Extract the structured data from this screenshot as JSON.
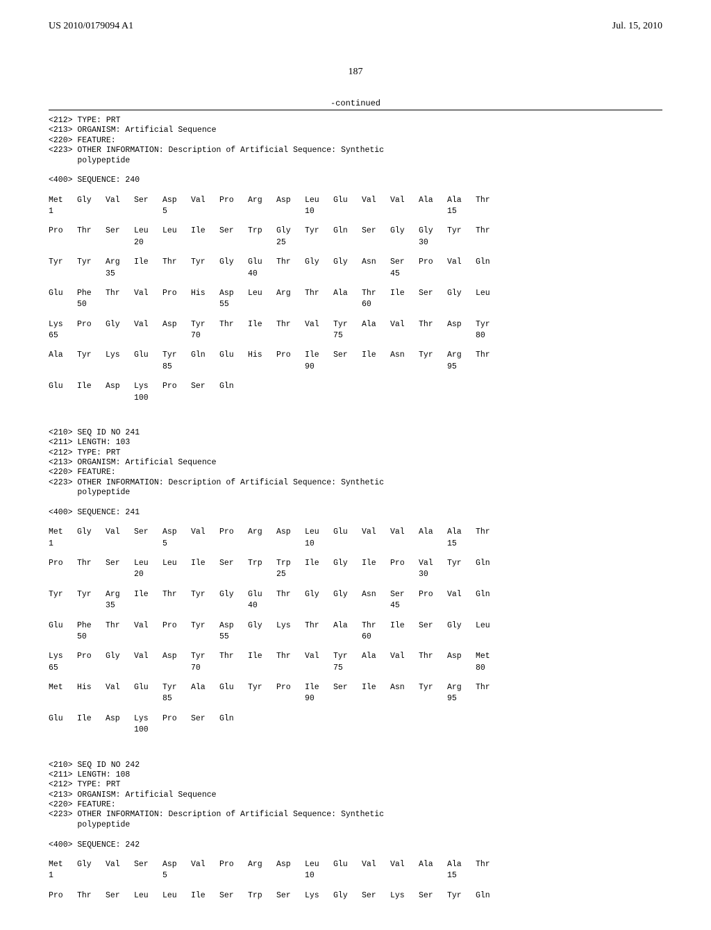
{
  "header": {
    "pub_number": "US 2010/0179094 A1",
    "pub_date": "Jul. 15, 2010"
  },
  "page_number": "187",
  "continued_label": "-continued",
  "meta_240": {
    "l1": "<212> TYPE: PRT",
    "l2": "<213> ORGANISM: Artificial Sequence",
    "l3": "<220> FEATURE:",
    "l4": "<223> OTHER INFORMATION: Description of Artificial Sequence: Synthetic",
    "l5": "      polypeptide",
    "l6": "<400> SEQUENCE: 240"
  },
  "seq_240": {
    "r1": [
      "Met",
      "Gly",
      "Val",
      "Ser",
      "Asp",
      "Val",
      "Pro",
      "Arg",
      "Asp",
      "Leu",
      "Glu",
      "Val",
      "Val",
      "Ala",
      "Ala",
      "Thr"
    ],
    "n1": [
      "1",
      "",
      "",
      "",
      "5",
      "",
      "",
      "",
      "",
      "10",
      "",
      "",
      "",
      "",
      "15",
      ""
    ],
    "r2": [
      "Pro",
      "Thr",
      "Ser",
      "Leu",
      "Leu",
      "Ile",
      "Ser",
      "Trp",
      "Gly",
      "Tyr",
      "Gln",
      "Ser",
      "Gly",
      "Gly",
      "Tyr",
      "Thr"
    ],
    "n2": [
      "",
      "",
      "",
      "20",
      "",
      "",
      "",
      "",
      "25",
      "",
      "",
      "",
      "",
      "30",
      "",
      ""
    ],
    "r3": [
      "Tyr",
      "Tyr",
      "Arg",
      "Ile",
      "Thr",
      "Tyr",
      "Gly",
      "Glu",
      "Thr",
      "Gly",
      "Gly",
      "Asn",
      "Ser",
      "Pro",
      "Val",
      "Gln"
    ],
    "n3": [
      "",
      "",
      "35",
      "",
      "",
      "",
      "",
      "40",
      "",
      "",
      "",
      "",
      "45",
      "",
      "",
      ""
    ],
    "r4": [
      "Glu",
      "Phe",
      "Thr",
      "Val",
      "Pro",
      "His",
      "Asp",
      "Leu",
      "Arg",
      "Thr",
      "Ala",
      "Thr",
      "Ile",
      "Ser",
      "Gly",
      "Leu"
    ],
    "n4": [
      "",
      "50",
      "",
      "",
      "",
      "",
      "55",
      "",
      "",
      "",
      "",
      "60",
      "",
      "",
      "",
      ""
    ],
    "r5": [
      "Lys",
      "Pro",
      "Gly",
      "Val",
      "Asp",
      "Tyr",
      "Thr",
      "Ile",
      "Thr",
      "Val",
      "Tyr",
      "Ala",
      "Val",
      "Thr",
      "Asp",
      "Tyr"
    ],
    "n5": [
      "65",
      "",
      "",
      "",
      "",
      "70",
      "",
      "",
      "",
      "",
      "75",
      "",
      "",
      "",
      "",
      "80"
    ],
    "r6": [
      "Ala",
      "Tyr",
      "Lys",
      "Glu",
      "Tyr",
      "Gln",
      "Glu",
      "His",
      "Pro",
      "Ile",
      "Ser",
      "Ile",
      "Asn",
      "Tyr",
      "Arg",
      "Thr"
    ],
    "n6": [
      "",
      "",
      "",
      "",
      "85",
      "",
      "",
      "",
      "",
      "90",
      "",
      "",
      "",
      "",
      "95",
      ""
    ],
    "r7": [
      "Glu",
      "Ile",
      "Asp",
      "Lys",
      "Pro",
      "Ser",
      "Gln",
      "",
      "",
      "",
      "",
      "",
      "",
      "",
      "",
      ""
    ],
    "n7": [
      "",
      "",
      "",
      "100",
      "",
      "",
      "",
      "",
      "",
      "",
      "",
      "",
      "",
      "",
      "",
      ""
    ]
  },
  "meta_241": {
    "l1": "<210> SEQ ID NO 241",
    "l2": "<211> LENGTH: 103",
    "l3": "<212> TYPE: PRT",
    "l4": "<213> ORGANISM: Artificial Sequence",
    "l5": "<220> FEATURE:",
    "l6": "<223> OTHER INFORMATION: Description of Artificial Sequence: Synthetic",
    "l7": "      polypeptide",
    "l8": "<400> SEQUENCE: 241"
  },
  "seq_241": {
    "r1": [
      "Met",
      "Gly",
      "Val",
      "Ser",
      "Asp",
      "Val",
      "Pro",
      "Arg",
      "Asp",
      "Leu",
      "Glu",
      "Val",
      "Val",
      "Ala",
      "Ala",
      "Thr"
    ],
    "n1": [
      "1",
      "",
      "",
      "",
      "5",
      "",
      "",
      "",
      "",
      "10",
      "",
      "",
      "",
      "",
      "15",
      ""
    ],
    "r2": [
      "Pro",
      "Thr",
      "Ser",
      "Leu",
      "Leu",
      "Ile",
      "Ser",
      "Trp",
      "Trp",
      "Ile",
      "Gly",
      "Ile",
      "Pro",
      "Val",
      "Tyr",
      "Gln"
    ],
    "n2": [
      "",
      "",
      "",
      "20",
      "",
      "",
      "",
      "",
      "25",
      "",
      "",
      "",
      "",
      "30",
      "",
      ""
    ],
    "r3": [
      "Tyr",
      "Tyr",
      "Arg",
      "Ile",
      "Thr",
      "Tyr",
      "Gly",
      "Glu",
      "Thr",
      "Gly",
      "Gly",
      "Asn",
      "Ser",
      "Pro",
      "Val",
      "Gln"
    ],
    "n3": [
      "",
      "",
      "35",
      "",
      "",
      "",
      "",
      "40",
      "",
      "",
      "",
      "",
      "45",
      "",
      "",
      ""
    ],
    "r4": [
      "Glu",
      "Phe",
      "Thr",
      "Val",
      "Pro",
      "Tyr",
      "Asp",
      "Gly",
      "Lys",
      "Thr",
      "Ala",
      "Thr",
      "Ile",
      "Ser",
      "Gly",
      "Leu"
    ],
    "n4": [
      "",
      "50",
      "",
      "",
      "",
      "",
      "55",
      "",
      "",
      "",
      "",
      "60",
      "",
      "",
      "",
      ""
    ],
    "r5": [
      "Lys",
      "Pro",
      "Gly",
      "Val",
      "Asp",
      "Tyr",
      "Thr",
      "Ile",
      "Thr",
      "Val",
      "Tyr",
      "Ala",
      "Val",
      "Thr",
      "Asp",
      "Met"
    ],
    "n5": [
      "65",
      "",
      "",
      "",
      "",
      "70",
      "",
      "",
      "",
      "",
      "75",
      "",
      "",
      "",
      "",
      "80"
    ],
    "r6": [
      "Met",
      "His",
      "Val",
      "Glu",
      "Tyr",
      "Ala",
      "Glu",
      "Tyr",
      "Pro",
      "Ile",
      "Ser",
      "Ile",
      "Asn",
      "Tyr",
      "Arg",
      "Thr"
    ],
    "n6": [
      "",
      "",
      "",
      "",
      "85",
      "",
      "",
      "",
      "",
      "90",
      "",
      "",
      "",
      "",
      "95",
      ""
    ],
    "r7": [
      "Glu",
      "Ile",
      "Asp",
      "Lys",
      "Pro",
      "Ser",
      "Gln",
      "",
      "",
      "",
      "",
      "",
      "",
      "",
      "",
      ""
    ],
    "n7": [
      "",
      "",
      "",
      "100",
      "",
      "",
      "",
      "",
      "",
      "",
      "",
      "",
      "",
      "",
      "",
      ""
    ]
  },
  "meta_242": {
    "l1": "<210> SEQ ID NO 242",
    "l2": "<211> LENGTH: 108",
    "l3": "<212> TYPE: PRT",
    "l4": "<213> ORGANISM: Artificial Sequence",
    "l5": "<220> FEATURE:",
    "l6": "<223> OTHER INFORMATION: Description of Artificial Sequence: Synthetic",
    "l7": "      polypeptide",
    "l8": "<400> SEQUENCE: 242"
  },
  "seq_242": {
    "r1": [
      "Met",
      "Gly",
      "Val",
      "Ser",
      "Asp",
      "Val",
      "Pro",
      "Arg",
      "Asp",
      "Leu",
      "Glu",
      "Val",
      "Val",
      "Ala",
      "Ala",
      "Thr"
    ],
    "n1": [
      "1",
      "",
      "",
      "",
      "5",
      "",
      "",
      "",
      "",
      "10",
      "",
      "",
      "",
      "",
      "15",
      ""
    ],
    "r2": [
      "Pro",
      "Thr",
      "Ser",
      "Leu",
      "Leu",
      "Ile",
      "Ser",
      "Trp",
      "Ser",
      "Lys",
      "Gly",
      "Ser",
      "Lys",
      "Ser",
      "Tyr",
      "Gln"
    ]
  }
}
